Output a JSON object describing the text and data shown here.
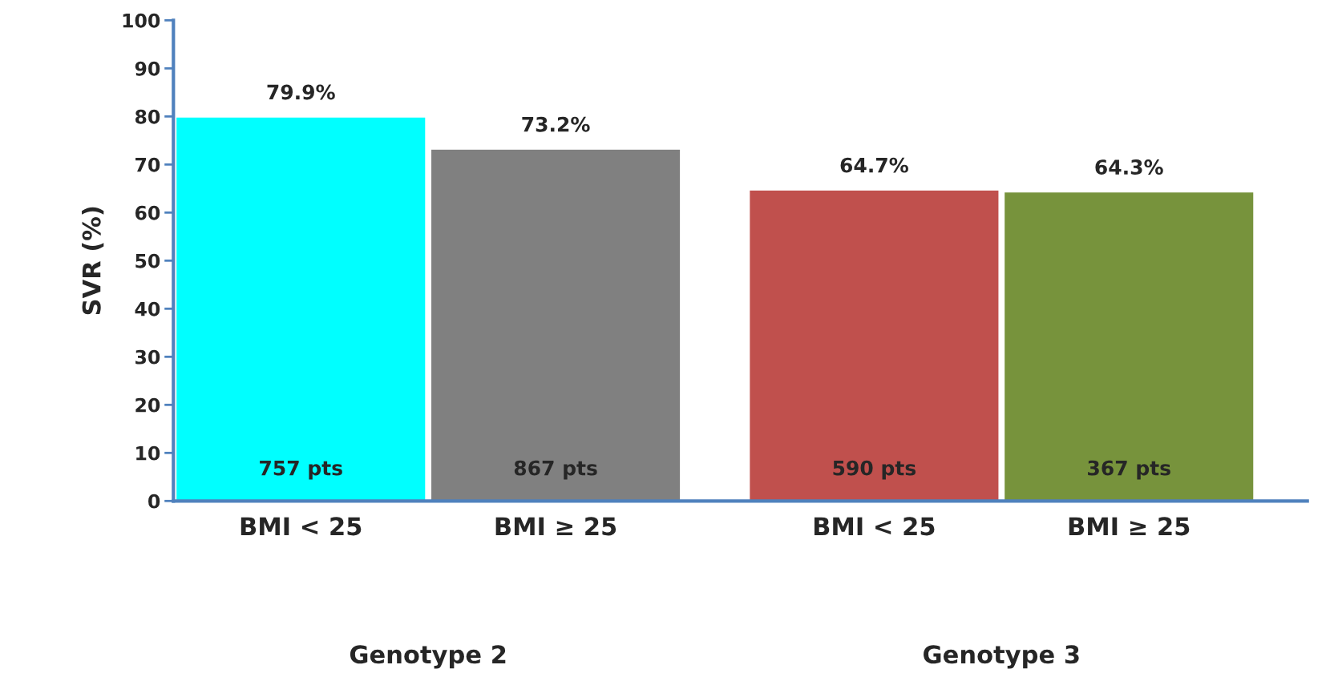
{
  "chart_data": {
    "type": "bar",
    "ylabel": "SVR (%)",
    "categories": [
      "BMI < 25",
      "BMI ≥ 25",
      "BMI < 25",
      "BMI ≥ 25"
    ],
    "values": [
      79.9,
      73.2,
      64.7,
      64.3
    ],
    "colors": [
      "#00ffff",
      "#808080",
      "#c0504d",
      "#77933c"
    ],
    "value_labels": [
      "79.9%",
      "73.2%",
      "64.7%",
      "64.3%"
    ],
    "annotations": [
      "757 pts",
      "867 pts",
      "590 pts",
      "367 pts",
      "Genotype 2",
      "Genotype 3"
    ],
    "ylim": [
      0,
      100
    ],
    "yticks": [
      0,
      10,
      20,
      30,
      40,
      50,
      60,
      70,
      80,
      90,
      100
    ],
    "grid": false,
    "legend": false
  }
}
